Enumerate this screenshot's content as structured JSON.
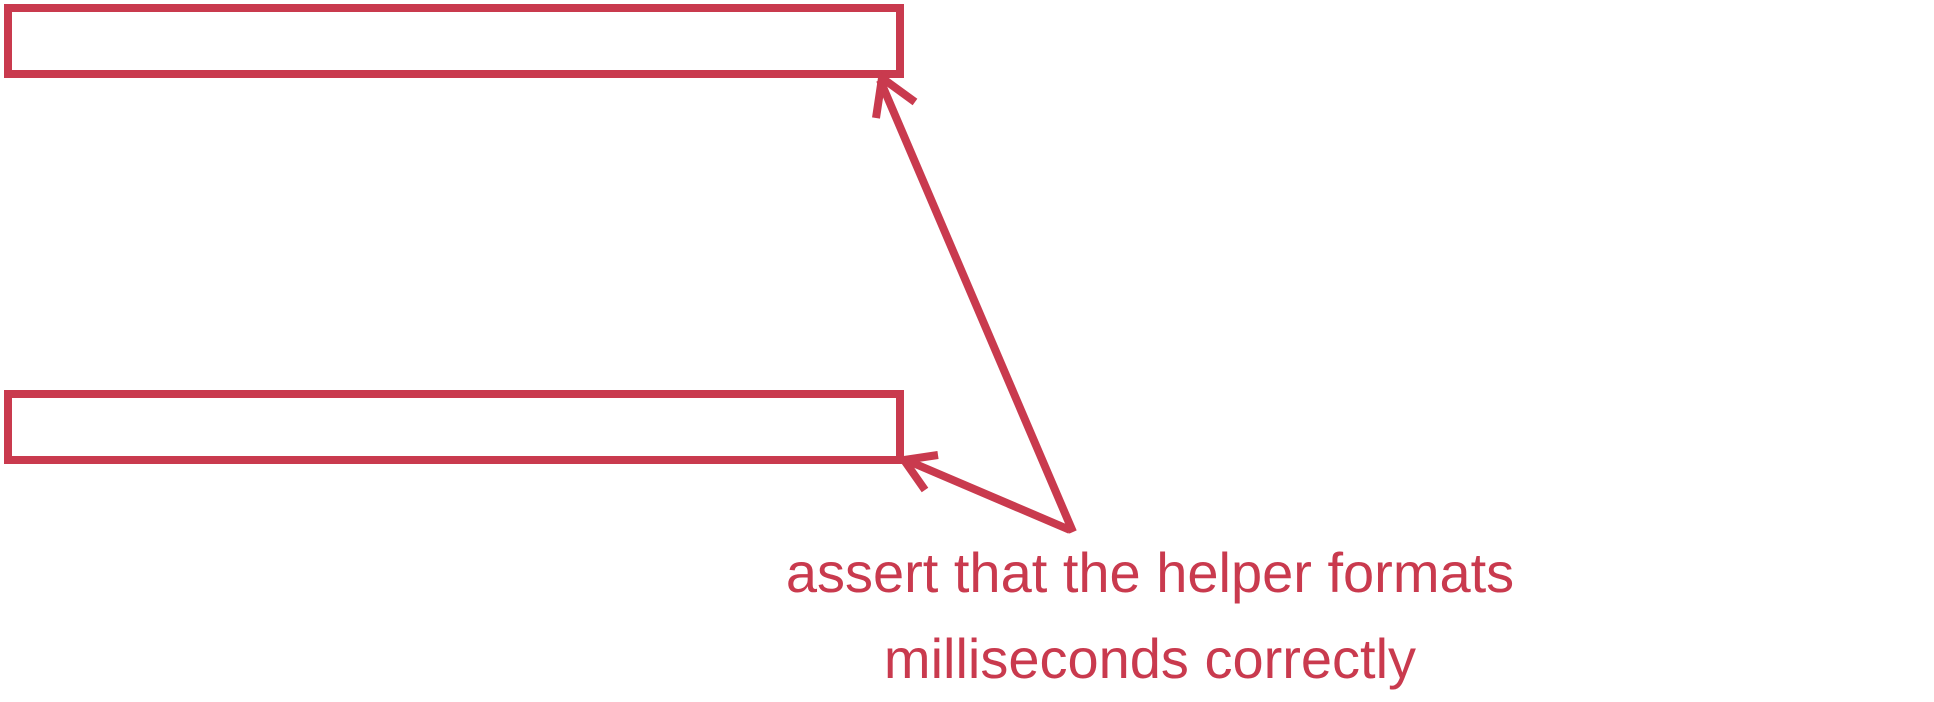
{
  "annotation": {
    "lines": [
      "assert that the helper formats",
      "milliseconds correctly"
    ]
  },
  "colors": {
    "accent": "#c93a4e",
    "background": "#ffffff"
  }
}
